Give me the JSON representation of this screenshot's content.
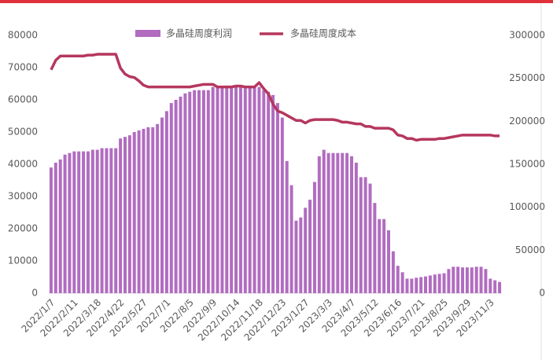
{
  "chart_data": {
    "type": "bar_line",
    "categories": [
      "2022/1/7",
      null,
      null,
      null,
      null,
      "2022/2/11",
      null,
      null,
      null,
      null,
      "2022/3/18",
      null,
      null,
      null,
      null,
      "2022/4/22",
      null,
      null,
      null,
      null,
      "2022/5/27",
      null,
      null,
      null,
      null,
      "2022/7/1",
      null,
      null,
      null,
      null,
      "2022/8/5",
      null,
      null,
      null,
      null,
      "2022/9/9",
      null,
      null,
      null,
      null,
      "2022/10/14",
      null,
      null,
      null,
      null,
      "2022/11/18",
      null,
      null,
      null,
      null,
      "2022/12/23",
      null,
      null,
      null,
      null,
      "2023/1/27",
      null,
      null,
      null,
      null,
      "2023/3/3",
      null,
      null,
      null,
      null,
      "2023/4/7",
      null,
      null,
      null,
      null,
      "2023/5/12",
      null,
      null,
      null,
      null,
      "2023/6/16",
      null,
      null,
      null,
      null,
      "2023/7/21",
      null,
      null,
      null,
      null,
      "2023/8/25",
      null,
      null,
      null,
      null,
      "2023/9/29",
      null,
      null,
      null,
      null,
      "2023/11/3",
      null,
      null
    ],
    "series": [
      {
        "name": "多晶硅周度利润",
        "type": "bar",
        "color": "#b16cc0",
        "axis": "y",
        "values": [
          39000,
          40500,
          41500,
          43000,
          43500,
          44000,
          44000,
          44000,
          44000,
          44500,
          44500,
          45000,
          45000,
          45000,
          45000,
          48000,
          48500,
          49000,
          50000,
          50500,
          51000,
          51500,
          51500,
          52500,
          54500,
          56500,
          59000,
          60000,
          61000,
          62000,
          62500,
          63000,
          63000,
          63000,
          63000,
          64000,
          64000,
          64000,
          64000,
          64000,
          64000,
          64000,
          64000,
          64000,
          64000,
          64000,
          63000,
          62500,
          61500,
          59000,
          54500,
          41000,
          33500,
          22500,
          23500,
          26500,
          29000,
          34500,
          42500,
          44500,
          43500,
          43500,
          43500,
          43500,
          43500,
          42500,
          40500,
          36000,
          36000,
          34000,
          28000,
          23000,
          23000,
          19500,
          13000,
          8500,
          6500,
          4500,
          4500,
          4800,
          5000,
          5200,
          5500,
          5800,
          6000,
          6200,
          7500,
          8200,
          8200,
          8000,
          8000,
          8000,
          8200,
          8200,
          7500,
          4500,
          4000,
          3500
        ]
      },
      {
        "name": "多晶硅周度成本",
        "type": "line",
        "color": "#b5375e",
        "axis": "y2",
        "values": [
          260000,
          271000,
          276000,
          276000,
          276000,
          276000,
          276000,
          276000,
          277000,
          277000,
          278000,
          278000,
          278000,
          278000,
          278000,
          262000,
          255000,
          252000,
          251000,
          247000,
          242000,
          240000,
          240000,
          240000,
          240000,
          240000,
          240000,
          240000,
          240000,
          240000,
          240000,
          241000,
          242000,
          243000,
          243000,
          243000,
          240000,
          240000,
          240000,
          240000,
          241000,
          241000,
          240000,
          240000,
          240000,
          245000,
          238000,
          232000,
          220000,
          212000,
          210000,
          207000,
          204000,
          201000,
          201000,
          198000,
          201000,
          202000,
          202000,
          202000,
          202000,
          202000,
          201000,
          199000,
          199000,
          198000,
          197000,
          197000,
          194000,
          194000,
          192000,
          192000,
          192000,
          192000,
          190000,
          184000,
          183000,
          180000,
          180000,
          178000,
          179000,
          179000,
          179000,
          179000,
          180000,
          180000,
          181000,
          182000,
          183000,
          184000,
          184000,
          184000,
          184000,
          184000,
          184000,
          184000,
          183000,
          183000
        ]
      }
    ],
    "ylim": [
      0,
      80000
    ],
    "yticks": [
      0,
      10000,
      20000,
      30000,
      40000,
      50000,
      60000,
      70000,
      80000
    ],
    "y2lim": [
      0,
      300000
    ],
    "y2ticks": [
      0,
      50000,
      100000,
      150000,
      200000,
      250000,
      300000
    ],
    "legend": "top"
  }
}
